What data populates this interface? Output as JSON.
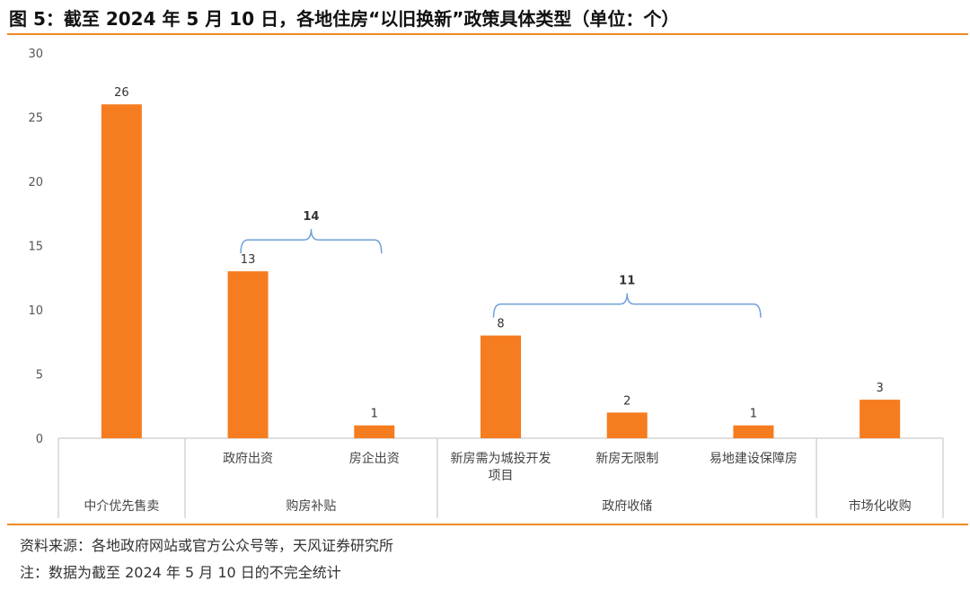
{
  "title": "图 5：截至 2024 年 5 月 10 日，各地住房“以旧换新”政策具体类型（单位：个）",
  "source": "资料来源：各地政府网站或官方公众号等，天风证券研究所",
  "note": "注：数据为截至 2024 年 5 月 10 日的不完全统计",
  "colors": {
    "bar": "#f57c1f",
    "bracket": "#6f9fd8",
    "accent_rule": "#f08a24",
    "axis": "#bfbfbf"
  },
  "chart_data": {
    "type": "bar",
    "title": "",
    "xlabel": "",
    "ylabel": "",
    "ylim": [
      0,
      30
    ],
    "yticks": [
      0,
      5,
      10,
      15,
      20,
      25,
      30
    ],
    "categories": [
      "中介优先售卖",
      "政府出资",
      "房企出资",
      "新房需为城投开发项目",
      "新房无限制",
      "易地建设保障房",
      "市场化收购"
    ],
    "values": [
      26,
      13,
      1,
      8,
      2,
      1,
      3
    ],
    "category_lines": [
      [
        "中介优先售卖"
      ],
      [
        "政府出资"
      ],
      [
        "房企出资"
      ],
      [
        "新房需为城投开发",
        "项目"
      ],
      [
        "新房无限制"
      ],
      [
        "易地建设保障房"
      ],
      [
        "市场化收购"
      ]
    ],
    "groups": [
      {
        "label": "中介优先售卖",
        "members": [
          0
        ]
      },
      {
        "label": "购房补贴",
        "members": [
          1,
          2
        ]
      },
      {
        "label": "政府收储",
        "members": [
          3,
          4,
          5
        ]
      },
      {
        "label": "市场化收购",
        "members": [
          6
        ]
      }
    ],
    "brackets": [
      {
        "label": "14",
        "members": [
          1,
          2
        ]
      },
      {
        "label": "11",
        "members": [
          3,
          4,
          5
        ]
      }
    ],
    "grid": false,
    "legend": "none"
  }
}
